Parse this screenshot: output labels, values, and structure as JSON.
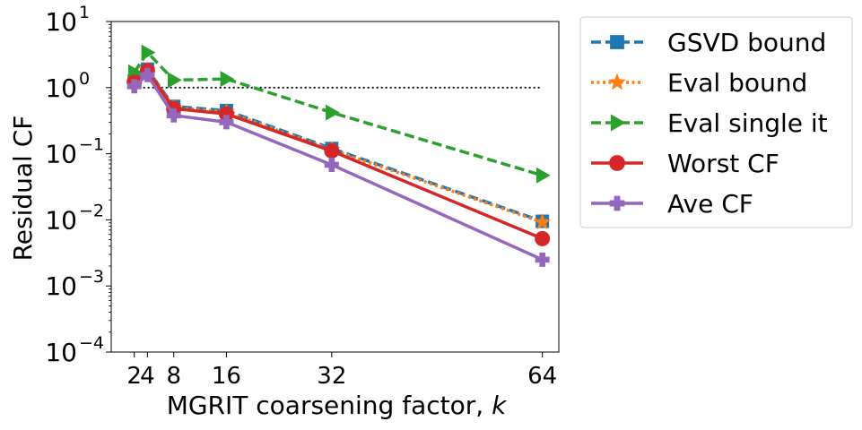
{
  "chart_data": {
    "type": "line",
    "xlabel": "MGRIT coarsening factor, ",
    "xlabel_var": "k",
    "ylabel": "Residual CF",
    "yscale": "log",
    "ylim_exp": [
      -4,
      1
    ],
    "xlim": [
      -1.5,
      66.5
    ],
    "xticks": [
      2,
      4,
      8,
      16,
      32,
      64
    ],
    "xtick_labels": [
      "2",
      "4",
      "8",
      "16",
      "32",
      "64"
    ],
    "yticks": [
      {
        "base": "10",
        "exp": "1"
      },
      {
        "base": "10",
        "exp": "0"
      },
      {
        "base": "10",
        "exp": "−1"
      },
      {
        "base": "10",
        "exp": "−2"
      },
      {
        "base": "10",
        "exp": "−3"
      },
      {
        "base": "10",
        "exp": "−4"
      }
    ],
    "reference_line": {
      "y": 1.0,
      "style": "dotted",
      "color": "#000000",
      "x_from": 2,
      "x_to": 64
    },
    "x": [
      2,
      4,
      8,
      16,
      32,
      64
    ],
    "series": [
      {
        "name": "GSVD bound",
        "color": "#1f77b4",
        "dash": "dashed",
        "marker": "square",
        "values": [
          1.25,
          1.9,
          0.52,
          0.45,
          0.12,
          0.0095
        ]
      },
      {
        "name": "Eval bound",
        "color": "#ff7f0e",
        "dash": "dotted",
        "marker": "star",
        "values": [
          1.2,
          1.85,
          0.5,
          0.43,
          0.115,
          0.0092
        ]
      },
      {
        "name": "Eval single it",
        "color": "#2ca02c",
        "dash": "dashed",
        "marker": "triangle-right",
        "values": [
          1.7,
          3.4,
          1.3,
          1.35,
          0.42,
          0.047
        ]
      },
      {
        "name": "Worst CF",
        "color": "#d62728",
        "dash": "solid",
        "marker": "circle",
        "values": [
          1.2,
          1.8,
          0.48,
          0.4,
          0.11,
          0.0052
        ]
      },
      {
        "name": "Ave CF",
        "color": "#9467bd",
        "dash": "solid",
        "marker": "plus",
        "values": [
          1.05,
          1.55,
          0.38,
          0.3,
          0.068,
          0.0025
        ]
      }
    ],
    "legend_position": "outside-right"
  }
}
